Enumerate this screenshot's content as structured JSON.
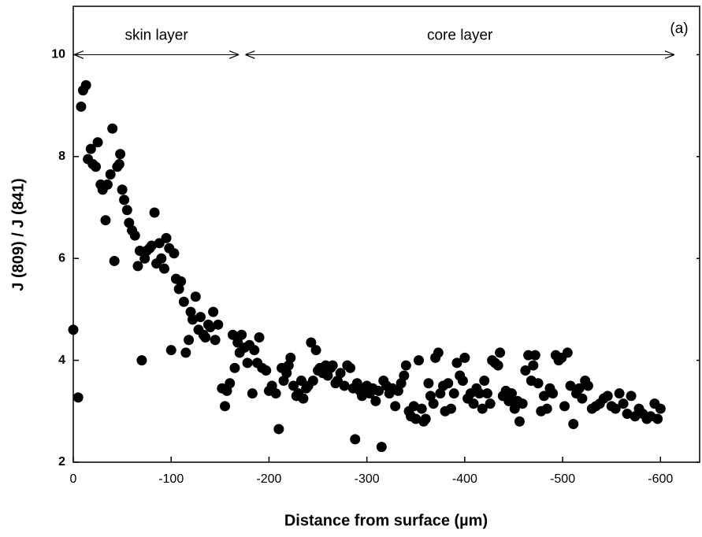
{
  "chart_data": {
    "type": "scatter",
    "x_label": "Distance from surface (µm)",
    "y_label": "J (809) / J (841)",
    "panel_label": "(a)",
    "annotations": [
      {
        "text": "skin layer",
        "x_range": [
          0,
          -170
        ],
        "y": 10
      },
      {
        "text": "core layer",
        "x_range": [
          -175,
          -615
        ],
        "y": 10
      }
    ],
    "xlim": [
      0,
      -640
    ],
    "ylim": [
      2,
      10.95
    ],
    "xticks": [
      0,
      -100,
      -200,
      -300,
      -400,
      -500,
      -600
    ],
    "yticks": [
      2,
      4,
      6,
      8,
      10
    ],
    "color": "#000000",
    "x": [
      0,
      -5,
      -8,
      -10,
      -13,
      -15,
      -18,
      -20,
      -23,
      -25,
      -28,
      -30,
      -33,
      -35,
      -38,
      -40,
      -42,
      -45,
      -47,
      -48,
      -50,
      -52,
      -55,
      -57,
      -60,
      -63,
      -66,
      -68,
      -70,
      -73,
      -75,
      -78,
      -80,
      -83,
      -85,
      -88,
      -90,
      -93,
      -95,
      -98,
      -100,
      -103,
      -105,
      -108,
      -110,
      -113,
      -115,
      -118,
      -120,
      -122,
      -125,
      -128,
      -130,
      -133,
      -135,
      -138,
      -140,
      -143,
      -145,
      -148,
      -152,
      -155,
      -157,
      -160,
      -163,
      -165,
      -168,
      -170,
      -172,
      -175,
      -178,
      -180,
      -183,
      -185,
      -188,
      -190,
      -193,
      -197,
      -200,
      -203,
      -207,
      -210,
      -213,
      -215,
      -218,
      -220,
      -222,
      -225,
      -228,
      -230,
      -233,
      -235,
      -238,
      -240,
      -243,
      -245,
      -248,
      -250,
      -252,
      -255,
      -258,
      -260,
      -263,
      -265,
      -268,
      -270,
      -273,
      -277,
      -280,
      -283,
      -286,
      -288,
      -290,
      -293,
      -295,
      -298,
      -300,
      -303,
      -306,
      -309,
      -312,
      -315,
      -317,
      -320,
      -323,
      -326,
      -329,
      -332,
      -335,
      -338,
      -340,
      -343,
      -345,
      -348,
      -350,
      -353,
      -356,
      -358,
      -360,
      -363,
      -365,
      -368,
      -370,
      -373,
      -375,
      -378,
      -380,
      -383,
      -386,
      -389,
      -392,
      -395,
      -398,
      -400,
      -403,
      -406,
      -409,
      -412,
      -415,
      -418,
      -420,
      -423,
      -426,
      -428,
      -431,
      -434,
      -436,
      -439,
      -442,
      -445,
      -448,
      -451,
      -454,
      -456,
      -459,
      -462,
      -465,
      -468,
      -470,
      -472,
      -475,
      -478,
      -481,
      -484,
      -487,
      -490,
      -493,
      -496,
      -499,
      -502,
      -505,
      -508,
      -511,
      -514,
      -517,
      -520,
      -523,
      -526,
      -530,
      -534,
      -538,
      -542,
      -546,
      -550,
      -554,
      -558,
      -562,
      -566,
      -570,
      -574,
      -578,
      -582,
      -586,
      -590,
      -594,
      -597,
      -600
    ],
    "y": [
      4.6,
      3.27,
      8.98,
      9.3,
      9.4,
      7.95,
      8.15,
      7.85,
      7.8,
      8.28,
      7.45,
      7.35,
      6.75,
      7.45,
      7.65,
      8.55,
      5.95,
      7.8,
      7.85,
      8.05,
      7.35,
      7.15,
      6.95,
      6.7,
      6.55,
      6.45,
      5.85,
      6.15,
      4.0,
      6.0,
      6.15,
      6.2,
      6.25,
      6.9,
      5.9,
      6.3,
      6.0,
      5.8,
      6.4,
      6.2,
      4.2,
      6.1,
      5.6,
      5.4,
      5.55,
      5.15,
      4.15,
      4.4,
      4.95,
      4.8,
      5.25,
      4.6,
      4.85,
      4.5,
      4.45,
      4.7,
      4.65,
      4.95,
      4.4,
      4.7,
      3.45,
      3.1,
      3.4,
      3.55,
      4.5,
      3.85,
      4.35,
      4.15,
      4.5,
      4.25,
      3.95,
      4.3,
      3.35,
      4.2,
      3.95,
      4.45,
      3.85,
      3.8,
      3.4,
      3.5,
      3.35,
      2.65,
      3.85,
      3.6,
      3.75,
      3.9,
      4.05,
      3.5,
      3.3,
      3.35,
      3.6,
      3.25,
      3.45,
      3.5,
      4.35,
      3.6,
      4.2,
      3.8,
      3.85,
      3.75,
      3.9,
      3.7,
      3.85,
      3.9,
      3.55,
      3.6,
      3.75,
      3.5,
      3.9,
      3.85,
      3.45,
      2.45,
      3.55,
      3.4,
      3.3,
      3.45,
      3.5,
      3.35,
      3.45,
      3.2,
      3.4,
      2.3,
      3.6,
      3.5,
      3.35,
      3.45,
      3.1,
      3.4,
      3.55,
      3.7,
      3.9,
      3.0,
      2.9,
      3.1,
      2.85,
      4.0,
      3.05,
      2.8,
      2.85,
      3.55,
      3.3,
      3.15,
      4.05,
      4.15,
      3.35,
      3.5,
      3.0,
      3.55,
      3.05,
      3.35,
      3.95,
      3.7,
      3.6,
      4.05,
      3.25,
      3.35,
      3.15,
      3.45,
      3.35,
      3.05,
      3.6,
      3.35,
      3.15,
      4.0,
      3.95,
      3.9,
      4.15,
      3.3,
      3.4,
      3.2,
      3.35,
      3.05,
      3.2,
      2.8,
      3.15,
      3.8,
      4.1,
      3.6,
      3.9,
      4.1,
      3.55,
      3.0,
      3.3,
      3.05,
      3.45,
      3.35,
      4.1,
      4.0,
      4.05,
      3.1,
      4.15,
      3.5,
      2.75,
      3.35,
      3.45,
      3.25,
      3.6,
      3.5,
      3.05,
      3.1,
      3.15,
      3.25,
      3.3,
      3.1,
      3.05,
      3.35,
      3.15,
      2.95,
      3.3,
      2.9,
      3.05,
      2.95,
      2.85,
      2.9,
      3.15,
      2.85,
      3.05
    ]
  }
}
